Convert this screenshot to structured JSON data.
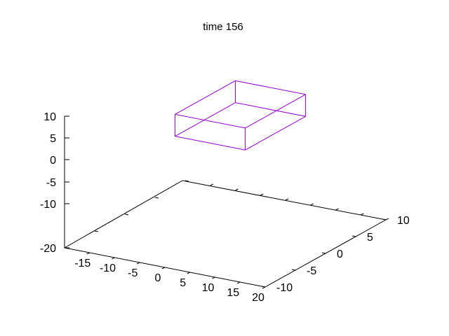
{
  "chart_data": {
    "type": "3d-wireframe",
    "title": "time 156",
    "xlim": [
      -20,
      20
    ],
    "ylim": [
      -10,
      10
    ],
    "zlim": [
      -20,
      10
    ],
    "x_ticks": [
      "-15",
      "-10",
      "-5",
      "0",
      "5",
      "10",
      "15",
      "20"
    ],
    "y_ticks": [
      "-10",
      "-5",
      "0",
      "5",
      "10"
    ],
    "z_ticks": [
      "10",
      "5",
      "0",
      "-5",
      "-10",
      "-20"
    ],
    "series": [
      {
        "color": "#9400d3",
        "box": {
          "x": [
            -10,
            4
          ],
          "y": [
            0,
            10
          ],
          "z": [
            0,
            5
          ]
        }
      }
    ]
  }
}
